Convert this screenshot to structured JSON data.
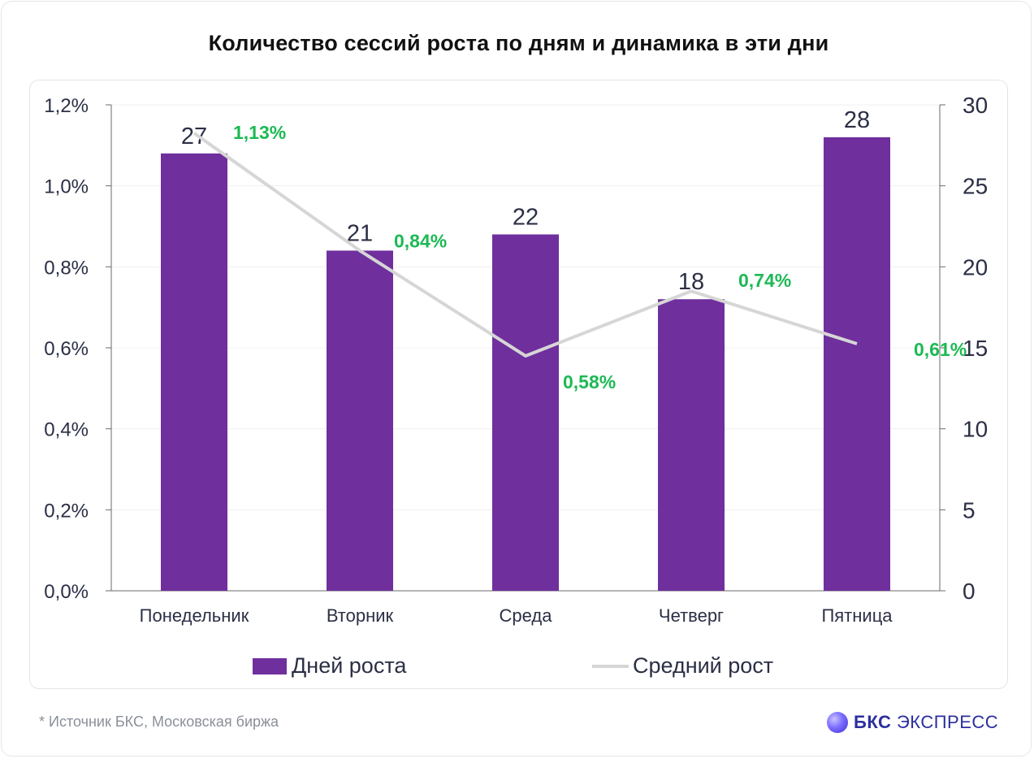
{
  "title": "Количество сессий роста по дням и динамика в эти дни",
  "footer": {
    "source": "*  Источник БКС, Московская биржа",
    "brand_bold": "БКС",
    "brand_light": " ЭКСПРЕСС",
    "brand_logo_icon": "bks-sphere-icon"
  },
  "colors": {
    "bar": "#6f2f9d",
    "line": "#d6d6d6",
    "line_label": "#1db954",
    "axis_text": "#2b2f45",
    "grid": "#f0f0f0"
  },
  "chart_data": {
    "type": "bar",
    "categories": [
      "Понедельник",
      "Вторник",
      "Среда",
      "Четверг",
      "Пятница"
    ],
    "series": [
      {
        "name": "Дней роста",
        "type": "bar",
        "axis": "right",
        "values": [
          27,
          21,
          22,
          18,
          28
        ],
        "labels": [
          "27",
          "21",
          "22",
          "18",
          "28"
        ]
      },
      {
        "name": "Средний рост",
        "type": "line",
        "axis": "left",
        "values": [
          1.13,
          0.84,
          0.58,
          0.74,
          0.61
        ],
        "labels": [
          "1,13%",
          "0,84%",
          "0,58%",
          "0,74%",
          "0,61%"
        ]
      }
    ],
    "y_left": {
      "ticks": [
        "0,0%",
        "0,2%",
        "0,4%",
        "0,6%",
        "0,8%",
        "1,0%",
        "1,2%"
      ],
      "lim": [
        0,
        1.2
      ]
    },
    "y_right": {
      "ticks": [
        "0",
        "5",
        "10",
        "15",
        "20",
        "25",
        "30"
      ],
      "lim": [
        0,
        30
      ]
    },
    "legend": {
      "items": [
        "Дней роста",
        "Средний рост"
      ],
      "position": "bottom"
    },
    "grid": true
  }
}
